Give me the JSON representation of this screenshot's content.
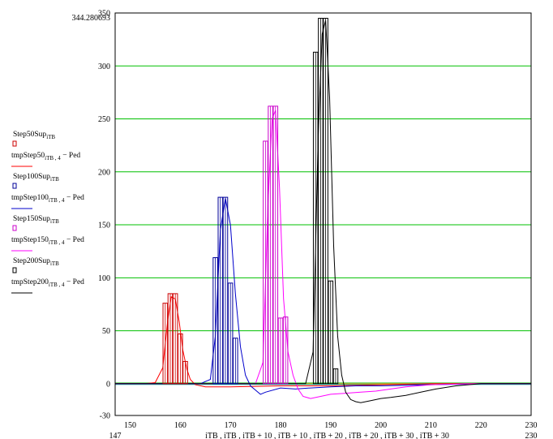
{
  "chart_data": {
    "type": "line",
    "corner_label": "344.280693",
    "xlabel": "iTB , iTB , iTB + 10 , iTB + 10 , iTB + 20 , iTB + 20 , iTB + 30 , iTB + 30",
    "xlim": [
      147,
      230
    ],
    "ylim": [
      -30,
      350
    ],
    "x_ticks": [
      150,
      160,
      170,
      180,
      190,
      200,
      210,
      220,
      230
    ],
    "x_ticks_shown": [
      "150",
      "160",
      "170",
      "180",
      "190",
      "200",
      "210",
      "220",
      "230"
    ],
    "x_min_label": "147",
    "x_max_label": "230",
    "y_ticks": [
      -30,
      0,
      50,
      100,
      150,
      200,
      250,
      300,
      350
    ],
    "y_ticks_shown": [
      "-30",
      "0",
      "50",
      "100",
      "150",
      "200",
      "250",
      "300",
      "350"
    ],
    "grid": "horizontal",
    "gridColor": "#00c000",
    "legend_position": "left",
    "legend": [
      {
        "label": "Step50Sup",
        "sub": "iTB",
        "suffix": "",
        "color": "#cc0000",
        "style": "bar"
      },
      {
        "label": "tmpStep50",
        "sub": "iTB , 4",
        "suffix": " − Ped",
        "color": "#ff0000",
        "style": "line"
      },
      {
        "label": "Step100Sup",
        "sub": "iTB",
        "suffix": "",
        "color": "#000099",
        "style": "bar"
      },
      {
        "label": "tmpStep100",
        "sub": "iTB , 4",
        "suffix": " − Ped",
        "color": "#0000cc",
        "style": "line"
      },
      {
        "label": "Step150Sup",
        "sub": "iTB",
        "suffix": "",
        "color": "#cc00cc",
        "style": "bar"
      },
      {
        "label": "tmpStep150",
        "sub": "iTB , 4",
        "suffix": " − Ped",
        "color": "#ff00ff",
        "style": "line"
      },
      {
        "label": "Step200Sup",
        "sub": "iTB",
        "suffix": "",
        "color": "#000000",
        "style": "bar"
      },
      {
        "label": "tmpStep200",
        "sub": "iTB , 4",
        "suffix": " − Ped",
        "color": "#000000",
        "style": "line"
      }
    ],
    "bar_series": [
      {
        "name": "Step50Sup",
        "color": "#cc0000",
        "x": [
          157,
          158,
          159,
          160,
          161
        ],
        "values": [
          76,
          85,
          85,
          47,
          21
        ]
      },
      {
        "name": "Step100Sup",
        "color": "#000099",
        "x": [
          167,
          168,
          169,
          170,
          171
        ],
        "values": [
          119,
          176,
          176,
          95,
          43
        ]
      },
      {
        "name": "Step150Sup",
        "color": "#cc00cc",
        "x": [
          177,
          178,
          179,
          180,
          181
        ],
        "values": [
          229,
          262,
          262,
          62,
          63
        ]
      },
      {
        "name": "Step200Sup",
        "color": "#000000",
        "x": [
          187,
          188,
          189,
          190,
          191
        ],
        "values": [
          313,
          345,
          345,
          97,
          14
        ]
      }
    ],
    "line_series": [
      {
        "name": "tmpStep50",
        "color": "#ff0000",
        "x": [
          147,
          150,
          153,
          155,
          156.5,
          157.5,
          158.2,
          159,
          159.8,
          160.5,
          161.3,
          162,
          163,
          165,
          170,
          180,
          190,
          200,
          210,
          220,
          230
        ],
        "values": [
          0,
          0,
          0,
          1,
          15,
          60,
          82,
          80,
          58,
          32,
          14,
          4,
          -1,
          -3,
          -3,
          -2,
          -2,
          -1,
          0,
          0,
          0
        ]
      },
      {
        "name": "tmpStep100",
        "color": "#0000cc",
        "x": [
          147,
          160,
          164,
          166,
          167,
          168,
          169,
          170,
          171,
          172,
          173,
          174,
          175,
          176,
          177,
          180,
          183,
          186,
          190,
          195,
          200,
          210,
          220,
          230
        ],
        "values": [
          0,
          0,
          0,
          4,
          45,
          145,
          175,
          150,
          85,
          35,
          8,
          -2,
          -6,
          -10,
          -8,
          -4,
          -5,
          -4,
          -3,
          -2,
          -2,
          -1,
          0,
          0
        ]
      },
      {
        "name": "tmpStep150",
        "color": "#ff00ff",
        "x": [
          147,
          170,
          175,
          176.5,
          177.5,
          178.3,
          179,
          179.8,
          180.6,
          181.5,
          182.5,
          183.5,
          184.5,
          186,
          188,
          190,
          193,
          196,
          199,
          202,
          205,
          210,
          220,
          230
        ],
        "values": [
          0,
          0,
          0,
          20,
          170,
          250,
          258,
          185,
          80,
          30,
          8,
          -5,
          -12,
          -14,
          -12,
          -10,
          -9,
          -8,
          -7,
          -5,
          -3,
          -1,
          0,
          0
        ]
      },
      {
        "name": "tmpStep200",
        "color": "#000000",
        "x": [
          147,
          180,
          185,
          186.5,
          187.5,
          188.3,
          189,
          189.8,
          190.6,
          191.4,
          192.2,
          193,
          194,
          195,
          196,
          198,
          200,
          202,
          205,
          208,
          211,
          215,
          220,
          230
        ],
        "values": [
          0,
          0,
          0,
          30,
          230,
          330,
          343,
          270,
          130,
          45,
          8,
          -8,
          -15,
          -17,
          -18,
          -16,
          -14,
          -13,
          -11,
          -8,
          -5,
          -2,
          0,
          0
        ]
      }
    ],
    "baseline_colors": [
      "#00c000",
      "#ff8800",
      "#00a0a0"
    ]
  }
}
